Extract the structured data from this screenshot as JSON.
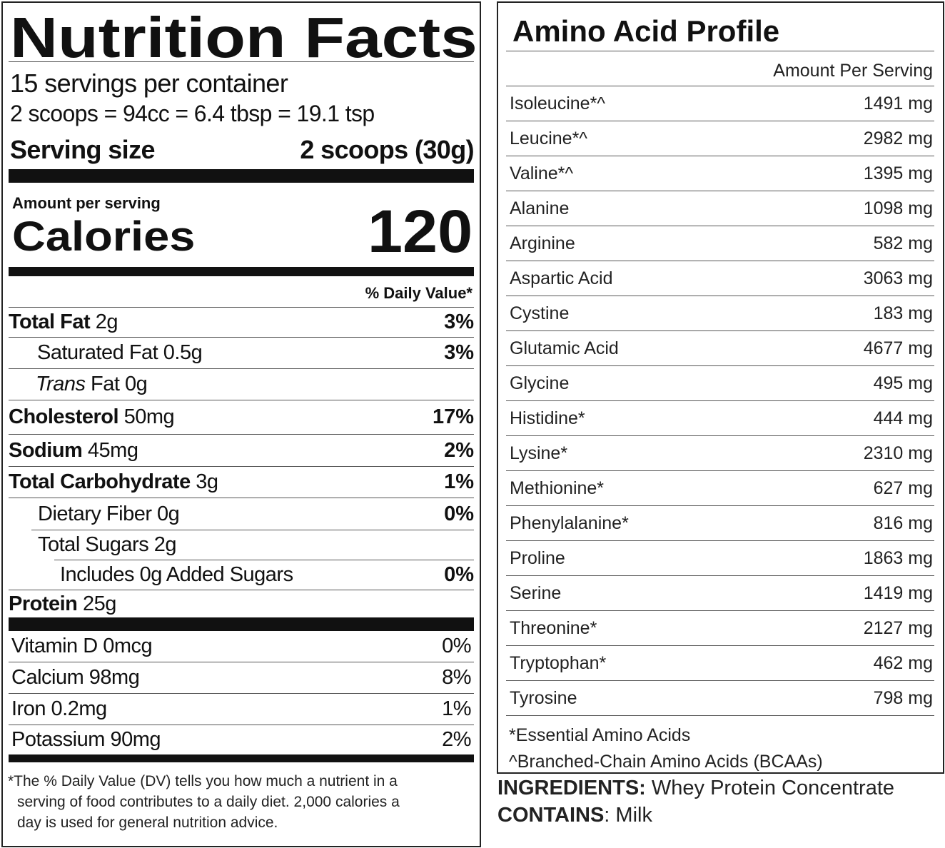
{
  "nutrition": {
    "title": "Nutrition Facts",
    "servings_per_container": "15 servings per container",
    "scoop_equivalence": "2 scoops = 94cc = 6.4 tbsp = 19.1 tsp",
    "serving_size_label": "Serving size",
    "serving_size_value": "2 scoops (30g)",
    "amount_per_serving": "Amount per serving",
    "calories_label": "Calories",
    "calories_value": "120",
    "dv_header": "% Daily Value*",
    "nutrients": [
      {
        "name": "Total Fat",
        "amount": "2g",
        "dv": "3%"
      },
      {
        "name": "Saturated Fat 0.5g",
        "amount": "",
        "dv": "3%"
      },
      {
        "name": "Trans",
        "amount": "Fat 0g",
        "dv": ""
      },
      {
        "name": "Cholesterol",
        "amount": "50mg",
        "dv": "17%"
      },
      {
        "name": "Sodium",
        "amount": "45mg",
        "dv": "2%"
      },
      {
        "name": "Total Carbohydrate",
        "amount": "3g",
        "dv": "1%"
      },
      {
        "name": "Dietary Fiber 0g",
        "amount": "",
        "dv": "0%"
      },
      {
        "name": "Total Sugars 2g",
        "amount": "",
        "dv": ""
      },
      {
        "name": "Includes 0g Added Sugars",
        "amount": "",
        "dv": "0%"
      },
      {
        "name": "Protein",
        "amount": "25g",
        "dv": ""
      }
    ],
    "vitamins": [
      {
        "name": "Vitamin D 0mcg",
        "dv": "0%"
      },
      {
        "name": "Calcium 98mg",
        "dv": "8%"
      },
      {
        "name": "Iron 0.2mg",
        "dv": "1%"
      },
      {
        "name": "Potassium 90mg",
        "dv": "2%"
      }
    ],
    "footnote": [
      "*The % Daily Value (DV) tells you how much a nutrient in a",
      "serving of food contributes to a daily diet. 2,000 calories a",
      "day is used for general nutrition advice."
    ]
  },
  "amino": {
    "title": "Amino Acid Profile",
    "column_header": "Amount Per Serving",
    "rows": [
      {
        "name": "Isoleucine*^",
        "amount": "1491 mg"
      },
      {
        "name": "Leucine*^",
        "amount": "2982 mg"
      },
      {
        "name": "Valine*^",
        "amount": "1395 mg"
      },
      {
        "name": "Alanine",
        "amount": "1098 mg"
      },
      {
        "name": "Arginine",
        "amount": "582 mg"
      },
      {
        "name": "Aspartic Acid",
        "amount": "3063 mg"
      },
      {
        "name": "Cystine",
        "amount": "183 mg"
      },
      {
        "name": "Glutamic Acid",
        "amount": "4677 mg"
      },
      {
        "name": "Glycine",
        "amount": "495 mg"
      },
      {
        "name": "Histidine*",
        "amount": "444 mg"
      },
      {
        "name": "Lysine*",
        "amount": "2310 mg"
      },
      {
        "name": "Methionine*",
        "amount": "627 mg"
      },
      {
        "name": "Phenylalanine*",
        "amount": "816 mg"
      },
      {
        "name": "Proline",
        "amount": "1863 mg"
      },
      {
        "name": "Serine",
        "amount": "1419 mg"
      },
      {
        "name": "Threonine*",
        "amount": "2127 mg"
      },
      {
        "name": "Tryptophan*",
        "amount": "462 mg"
      },
      {
        "name": "Tyrosine",
        "amount": "798 mg"
      }
    ],
    "footnotes": [
      "*Essential Amino Acids",
      "^Branched-Chain Amino Acids (BCAAs)"
    ]
  },
  "ingredients": {
    "ingredients_label": "INGREDIENTS:",
    "ingredients_value": "Whey Protein Concentrate",
    "contains_label": "CONTAINS",
    "contains_value": ": Milk"
  }
}
